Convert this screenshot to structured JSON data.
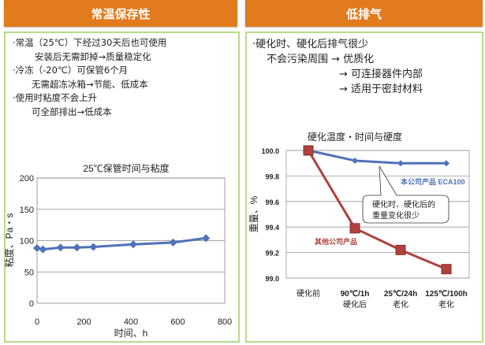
{
  "left": {
    "header": "常温保存性",
    "lines": [
      "·常温（25℃）下经过30天后也可使用",
      "安装后无需卸掉→质量稳定化",
      "·冷冻（-20℃）可保管6个月",
      "无需超冻冰箱→节能、低成本",
      "·使用时粘度不会上升",
      "可全部排出→低成本"
    ]
  },
  "right": {
    "header": "低排气",
    "lines": [
      "·硬化时、硬化后排气很少",
      "不会污染周围 → 优质化",
      "→ 可连接器件内部",
      "→ 适用于密封材料"
    ]
  },
  "chart_data": [
    {
      "type": "line",
      "title": "25℃保管时间与粘度",
      "xlabel": "时间、h",
      "ylabel": "粘度、Pa・s",
      "xlim": [
        0,
        800
      ],
      "ylim": [
        0,
        200
      ],
      "xticks": [
        "0",
        "200",
        "400",
        "600",
        "800"
      ],
      "yticks": [
        "0",
        "50",
        "100",
        "150",
        "200"
      ],
      "series": [
        {
          "name": "粘度",
          "color": "#4F72B8",
          "x": [
            0,
            25,
            100,
            170,
            240,
            410,
            580,
            720
          ],
          "y": [
            88,
            86,
            89,
            89,
            90,
            94,
            97,
            104
          ]
        }
      ]
    },
    {
      "type": "line",
      "title": "硬化温度・时间与硬度",
      "ylabel": "重量、%",
      "ylim": [
        99.0,
        100.0
      ],
      "yticks": [
        "99.0",
        "99.2",
        "99.4",
        "99.6",
        "99.8",
        "100.0"
      ],
      "categories": [
        [
          "硬化前",
          ""
        ],
        [
          "90℃/1h",
          "硬化后"
        ],
        [
          "25℃/24h",
          "老化"
        ],
        [
          "125℃/100h",
          "老化"
        ]
      ],
      "series": [
        {
          "name": "本公司产品 ECA100",
          "color": "#4F72B8",
          "values": [
            100.0,
            99.92,
            99.9,
            99.9
          ]
        },
        {
          "name": "其他公司产品",
          "color": "#B0413E",
          "values": [
            100.0,
            99.39,
            99.22,
            99.07
          ]
        }
      ],
      "callout": [
        "硬化时、硬化后的",
        "重量变化很少"
      ]
    }
  ]
}
